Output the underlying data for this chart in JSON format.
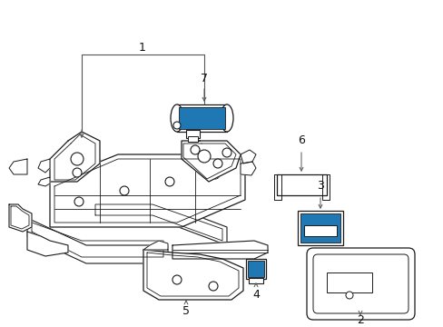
{
  "bg_color": "#ffffff",
  "line_color": "#1a1a1a",
  "callout_color": "#555555",
  "figsize": [
    4.89,
    3.6
  ],
  "dpi": 100,
  "xlim": [
    0,
    489
  ],
  "ylim": [
    0,
    360
  ]
}
